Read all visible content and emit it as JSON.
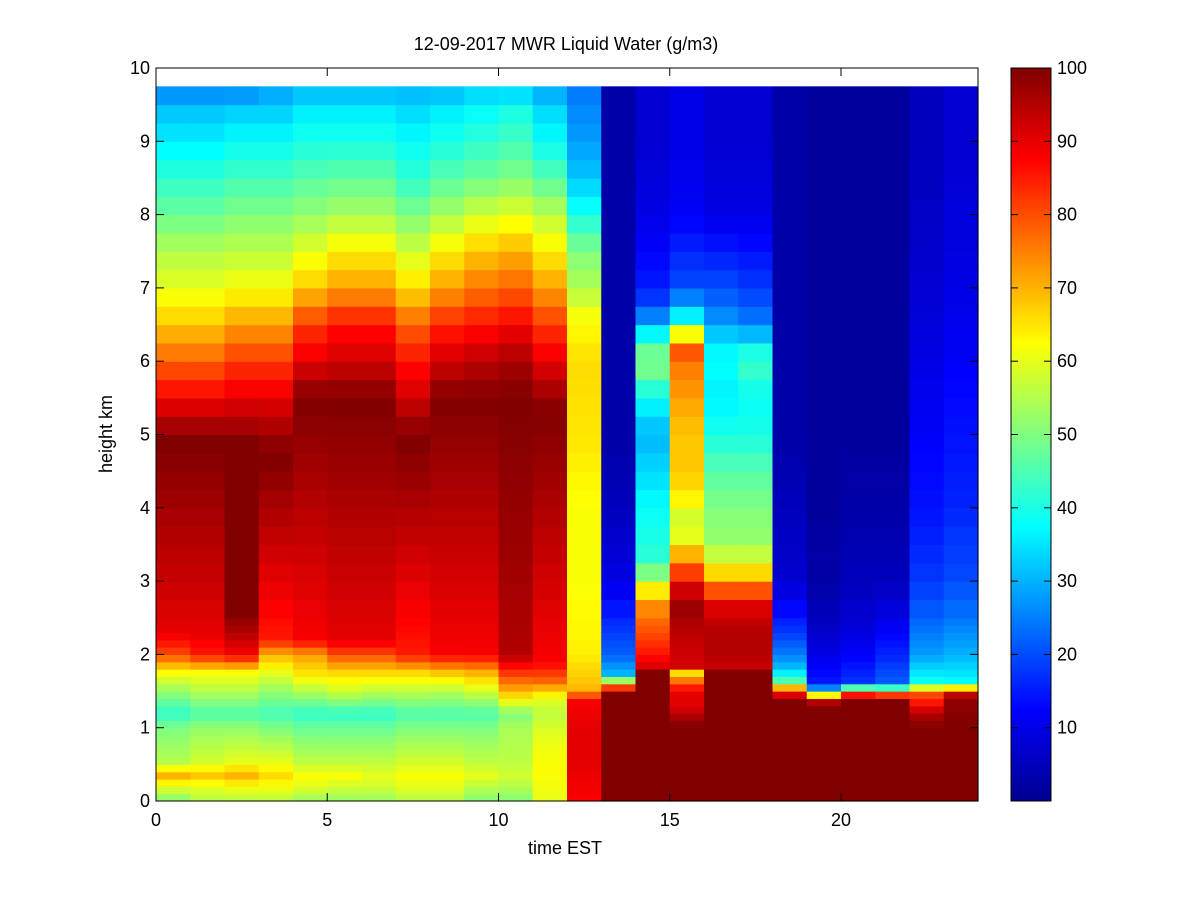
{
  "chart_data": {
    "type": "heatmap",
    "title": "12-09-2017 MWR Liquid Water (g/m3)",
    "xlabel": "time EST",
    "ylabel": "height km",
    "xlim": [
      0,
      24
    ],
    "ylim": [
      0,
      10
    ],
    "xticks": [
      0,
      5,
      10,
      15,
      20
    ],
    "yticks": [
      0,
      1,
      2,
      3,
      4,
      5,
      6,
      7,
      8,
      9,
      10
    ],
    "xtick_labels": [
      "0",
      "5",
      "10",
      "15",
      "20"
    ],
    "ytick_labels": [
      "0",
      "1",
      "2",
      "3",
      "4",
      "5",
      "6",
      "7",
      "8",
      "9",
      "10"
    ],
    "colorbar": {
      "colormap": "jet",
      "range": [
        0,
        100
      ],
      "ticks": [
        10,
        20,
        30,
        40,
        50,
        60,
        70,
        80,
        90,
        100
      ],
      "tick_labels": [
        "10",
        "20",
        "30",
        "40",
        "50",
        "60",
        "70",
        "80",
        "90",
        "100"
      ]
    },
    "time_columns": [
      0,
      1,
      2,
      3,
      4,
      5,
      6,
      7,
      8,
      9,
      10,
      11,
      12,
      13,
      14,
      15,
      16,
      17,
      18,
      19,
      20,
      21,
      22,
      23
    ],
    "height_max_km": 9.75,
    "height_levels": [
      0,
      0.1,
      0.2,
      0.3,
      0.4,
      0.5,
      0.6,
      0.7,
      0.8,
      0.9,
      1.0,
      1.1,
      1.2,
      1.3,
      1.4,
      1.5,
      1.6,
      1.7,
      1.8,
      1.9,
      2.0,
      2.1,
      2.2,
      2.3,
      2.4,
      2.5,
      2.75,
      3.0,
      3.25,
      3.5,
      3.75,
      4.0,
      4.25,
      4.5,
      4.75,
      5.0,
      5.25,
      5.5,
      5.75,
      6.0,
      6.25,
      6.5,
      6.75,
      7.0,
      7.25,
      7.5,
      7.75,
      8.0,
      8.25,
      8.5,
      8.75,
      9.0,
      9.25,
      9.5
    ],
    "profiles": [
      {
        "h": [
          0,
          0.2,
          0.35,
          0.55,
          1.0,
          1.2,
          1.5,
          1.75,
          2.0,
          2.3,
          4.9,
          5.2,
          5.5,
          6.0,
          6.5,
          7.0,
          7.5,
          8.0,
          8.5,
          9.0,
          9.4,
          9.75
        ],
        "v": [
          50,
          60,
          70,
          55,
          50,
          42,
          52,
          62,
          80,
          90,
          100,
          95,
          88,
          78,
          68,
          60,
          55,
          48,
          42,
          36,
          32,
          25
        ]
      },
      {
        "h": [
          0,
          0.2,
          0.35,
          0.55,
          1.0,
          1.2,
          1.5,
          1.75,
          2.0,
          2.3,
          4.9,
          5.2,
          5.5,
          6.0,
          6.5,
          7.0,
          7.5,
          8.0,
          8.5,
          9.0,
          9.4,
          9.75
        ],
        "v": [
          55,
          60,
          68,
          58,
          52,
          45,
          55,
          62,
          85,
          90,
          100,
          95,
          88,
          78,
          68,
          60,
          55,
          48,
          42,
          36,
          32,
          25
        ]
      },
      {
        "h": [
          0,
          0.2,
          0.35,
          0.55,
          1.0,
          1.2,
          1.5,
          1.75,
          2.0,
          2.3,
          2.6,
          4.9,
          5.2,
          5.5,
          6.0,
          6.5,
          7.0,
          7.5,
          8.0,
          8.5,
          9.0,
          9.4,
          9.75
        ],
        "v": [
          55,
          62,
          70,
          60,
          52,
          45,
          55,
          62,
          88,
          95,
          100,
          100,
          95,
          90,
          82,
          72,
          62,
          56,
          50,
          44,
          38,
          33,
          25
        ]
      },
      {
        "h": [
          0,
          0.2,
          0.35,
          0.55,
          1.0,
          1.2,
          1.5,
          1.75,
          2.0,
          2.2,
          4.7,
          5.0,
          5.5,
          6.0,
          6.5,
          7.0,
          7.5,
          8.0,
          8.5,
          9.0,
          9.4,
          9.75
        ],
        "v": [
          55,
          62,
          66,
          60,
          50,
          44,
          52,
          60,
          70,
          85,
          100,
          97,
          90,
          82,
          72,
          62,
          56,
          50,
          44,
          38,
          33,
          28
        ]
      },
      {
        "h": [
          0,
          0.2,
          0.35,
          0.55,
          1.0,
          1.2,
          1.5,
          1.75,
          2.0,
          2.2,
          5.5,
          6.0,
          6.5,
          7.0,
          7.5,
          8.0,
          8.5,
          9.0,
          9.4,
          9.75
        ],
        "v": [
          52,
          60,
          62,
          56,
          48,
          42,
          55,
          65,
          72,
          88,
          100,
          90,
          82,
          68,
          60,
          52,
          46,
          40,
          36,
          30
        ]
      },
      {
        "h": [
          0,
          0.2,
          0.35,
          0.55,
          1.0,
          1.2,
          1.5,
          1.75,
          2.0,
          2.2,
          5.5,
          6.0,
          6.5,
          7.0,
          7.5,
          8.0,
          8.5,
          9.0,
          9.4,
          9.75
        ],
        "v": [
          52,
          58,
          62,
          56,
          48,
          42,
          58,
          66,
          80,
          90,
          100,
          92,
          86,
          72,
          64,
          54,
          47,
          40,
          36,
          30
        ]
      },
      {
        "h": [
          0,
          0.2,
          0.35,
          0.55,
          1.0,
          1.2,
          1.5,
          1.75,
          2.0,
          2.2,
          5.5,
          6.0,
          6.5,
          7.0,
          7.5,
          8.0,
          8.5,
          9.0,
          9.4,
          9.75
        ],
        "v": [
          52,
          58,
          60,
          56,
          48,
          42,
          56,
          66,
          80,
          90,
          100,
          92,
          86,
          72,
          64,
          54,
          47,
          40,
          36,
          30
        ]
      },
      {
        "h": [
          0,
          0.2,
          0.35,
          0.55,
          1.0,
          1.2,
          1.5,
          1.75,
          2.0,
          4.9,
          5.2,
          5.5,
          6.0,
          6.5,
          7.0,
          7.5,
          8.0,
          8.5,
          9.0,
          9.4,
          9.75
        ],
        "v": [
          55,
          60,
          62,
          58,
          50,
          45,
          56,
          66,
          85,
          100,
          97,
          92,
          86,
          78,
          66,
          58,
          50,
          42,
          38,
          34,
          30
        ]
      },
      {
        "h": [
          0,
          0.2,
          0.35,
          0.55,
          1.0,
          1.2,
          1.5,
          1.75,
          2.0,
          5.5,
          6.0,
          6.5,
          7.0,
          7.5,
          8.0,
          8.5,
          9.0,
          9.4,
          9.75
        ],
        "v": [
          55,
          60,
          62,
          58,
          50,
          45,
          55,
          68,
          88,
          100,
          92,
          84,
          72,
          64,
          54,
          46,
          40,
          36,
          30
        ]
      },
      {
        "h": [
          0,
          0.2,
          0.35,
          0.55,
          1.0,
          1.2,
          1.5,
          1.75,
          2.0,
          5.5,
          6.0,
          6.5,
          7.0,
          7.5,
          8.0,
          8.5,
          9.0,
          9.4,
          9.75
        ],
        "v": [
          50,
          56,
          60,
          56,
          50,
          45,
          58,
          70,
          88,
          100,
          94,
          86,
          76,
          68,
          58,
          48,
          42,
          38,
          32
        ]
      },
      {
        "h": [
          0,
          0.2,
          0.35,
          0.55,
          1.0,
          1.2,
          1.5,
          1.75,
          2.0,
          5.5,
          6.0,
          6.5,
          7.0,
          7.5,
          8.0,
          8.5,
          9.0,
          9.4,
          9.75
        ],
        "v": [
          50,
          55,
          58,
          56,
          54,
          50,
          70,
          82,
          95,
          100,
          96,
          88,
          78,
          70,
          60,
          50,
          44,
          40,
          32
        ]
      },
      {
        "h": [
          0,
          0.3,
          0.55,
          0.9,
          1.2,
          1.4,
          1.65,
          1.9,
          5.3,
          5.6,
          6.0,
          6.5,
          7.0,
          7.5,
          8.0,
          8.5,
          9.0,
          9.4,
          9.75
        ],
        "v": [
          60,
          62,
          62,
          60,
          56,
          60,
          78,
          88,
          100,
          96,
          90,
          82,
          72,
          64,
          56,
          46,
          38,
          34,
          28
        ]
      },
      {
        "h": [
          0,
          0.05,
          0.5,
          1.0,
          1.4,
          1.5,
          2.0,
          3.0,
          4.0,
          5.0,
          6.0,
          6.6,
          7.0,
          7.5,
          8.0,
          8.5,
          9.0,
          9.4,
          9.75
        ],
        "v": [
          70,
          88,
          90,
          90,
          88,
          70,
          64,
          62,
          62,
          65,
          66,
          62,
          55,
          50,
          40,
          32,
          28,
          26,
          24
        ]
      },
      {
        "h": [
          0,
          0.05,
          0.5,
          1.0,
          1.5,
          1.6,
          1.75,
          2.0,
          2.5,
          3.0,
          4.0,
          5.0,
          6.0,
          7.0,
          8.0,
          9.0,
          9.75
        ],
        "v": [
          70,
          100,
          100,
          100,
          100,
          64,
          30,
          22,
          16,
          10,
          6,
          4,
          4,
          4,
          4,
          4,
          4
        ]
      },
      {
        "h": [
          0,
          0.05,
          0.5,
          1.0,
          1.5,
          1.75,
          1.8,
          2.0,
          2.3,
          2.6,
          2.8,
          3.0,
          3.3,
          3.6,
          4.0,
          4.5,
          5.0,
          5.5,
          6.0,
          6.25,
          6.5,
          6.75,
          7.0,
          8.0,
          9.0,
          9.75
        ],
        "v": [
          70,
          100,
          100,
          100,
          100,
          100,
          92,
          86,
          80,
          75,
          70,
          55,
          42,
          40,
          38,
          34,
          30,
          38,
          52,
          44,
          30,
          20,
          15,
          10,
          8,
          8
        ]
      },
      {
        "h": [
          0,
          0.05,
          0.5,
          1.0,
          1.1,
          1.3,
          1.5,
          1.75,
          1.8,
          2.0,
          2.4,
          2.7,
          3.0,
          3.25,
          3.5,
          3.75,
          4.0,
          4.5,
          5.0,
          5.5,
          6.0,
          6.25,
          6.5,
          6.75,
          7.0,
          7.5,
          8.0,
          9.0,
          9.75
        ],
        "v": [
          92,
          100,
          100,
          100,
          98,
          90,
          90,
          66,
          92,
          92,
          95,
          98,
          88,
          75,
          65,
          55,
          62,
          68,
          68,
          72,
          76,
          82,
          42,
          30,
          20,
          16,
          12,
          10,
          10
        ]
      },
      {
        "h": [
          0,
          0.05,
          0.5,
          1.0,
          1.5,
          1.75,
          1.8,
          2.0,
          2.3,
          2.6,
          2.8,
          3.0,
          3.3,
          3.6,
          4.0,
          4.5,
          5.0,
          5.5,
          6.0,
          6.25,
          6.5,
          7.0,
          7.5,
          8.0,
          9.0,
          9.75
        ],
        "v": [
          95,
          100,
          100,
          100,
          100,
          100,
          92,
          95,
          95,
          92,
          84,
          72,
          58,
          52,
          50,
          46,
          40,
          36,
          38,
          36,
          28,
          20,
          15,
          10,
          8,
          8
        ]
      },
      {
        "h": [
          0,
          0.05,
          0.5,
          1.0,
          1.5,
          1.75,
          1.8,
          2.0,
          2.3,
          2.6,
          2.8,
          3.0,
          3.3,
          3.6,
          4.0,
          4.5,
          5.0,
          5.5,
          6.0,
          6.25,
          6.5,
          7.0,
          7.5,
          8.0,
          9.0,
          9.75
        ],
        "v": [
          95,
          100,
          100,
          100,
          100,
          100,
          92,
          95,
          95,
          92,
          84,
          72,
          58,
          52,
          50,
          46,
          40,
          38,
          44,
          36,
          25,
          18,
          14,
          10,
          8,
          8
        ]
      },
      {
        "h": [
          0,
          0.05,
          0.5,
          1.0,
          1.4,
          1.5,
          1.65,
          1.8,
          2.0,
          2.3,
          2.7,
          3.0,
          4.0,
          5.0,
          6.0,
          7.0,
          8.0,
          9.0,
          9.75
        ],
        "v": [
          70,
          100,
          100,
          100,
          100,
          82,
          45,
          32,
          25,
          18,
          12,
          8,
          6,
          4,
          4,
          4,
          4,
          4,
          4
        ]
      },
      {
        "h": [
          0,
          0.05,
          0.5,
          1.0,
          1.3,
          1.4,
          1.5,
          1.6,
          2.0,
          2.5,
          3.0,
          4.0,
          5.0,
          6.0,
          7.0,
          8.0,
          9.0,
          9.75
        ],
        "v": [
          70,
          100,
          100,
          100,
          100,
          90,
          36,
          15,
          10,
          6,
          4,
          3,
          3,
          3,
          3,
          3,
          3,
          3
        ]
      },
      {
        "h": [
          0,
          0.05,
          0.5,
          1.0,
          1.4,
          1.5,
          1.6,
          2.0,
          2.5,
          3.0,
          4.0,
          5.0,
          6.0,
          7.0,
          8.0,
          9.0,
          9.75
        ],
        "v": [
          70,
          100,
          100,
          100,
          100,
          72,
          18,
          12,
          8,
          6,
          4,
          3,
          3,
          3,
          3,
          3,
          3
        ]
      },
      {
        "h": [
          0,
          0.05,
          0.5,
          1.0,
          1.4,
          1.5,
          1.6,
          2.0,
          2.5,
          3.0,
          4.0,
          5.0,
          6.0,
          7.0,
          8.0,
          9.0,
          9.75
        ],
        "v": [
          70,
          100,
          100,
          100,
          100,
          64,
          22,
          16,
          10,
          6,
          4,
          3,
          3,
          3,
          3,
          3,
          3
        ]
      },
      {
        "h": [
          0,
          0.05,
          0.5,
          1.0,
          1.2,
          1.3,
          1.5,
          1.6,
          2.0,
          2.5,
          3.0,
          4.0,
          5.0,
          6.0,
          7.0,
          8.0,
          9.0,
          9.75
        ],
        "v": [
          70,
          100,
          100,
          100,
          95,
          88,
          78,
          40,
          28,
          22,
          18,
          14,
          12,
          10,
          8,
          7,
          6,
          6
        ]
      },
      {
        "h": [
          0,
          0.05,
          0.5,
          1.0,
          1.4,
          1.5,
          1.6,
          2.0,
          2.5,
          3.0,
          4.0,
          5.0,
          6.0,
          7.0,
          8.0,
          9.0,
          9.75
        ],
        "v": [
          70,
          100,
          100,
          100,
          98,
          90,
          38,
          30,
          24,
          20,
          16,
          14,
          12,
          10,
          9,
          8,
          8
        ]
      }
    ]
  }
}
